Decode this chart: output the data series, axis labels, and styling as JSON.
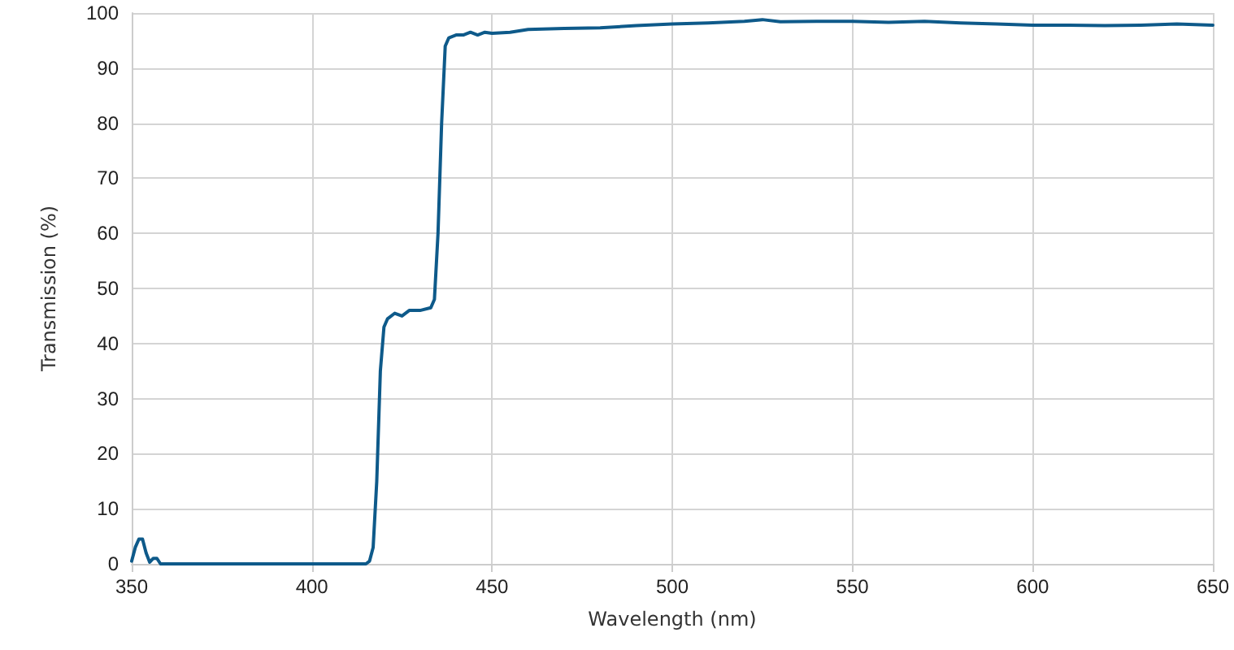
{
  "chart_data": {
    "type": "line",
    "xlabel": "Wavelength (nm)",
    "ylabel": "Transmission (%)",
    "x": [
      350,
      351,
      352,
      353,
      354,
      355,
      356,
      357,
      358,
      360,
      380,
      400,
      415,
      416,
      417,
      418,
      419,
      420,
      421,
      423,
      425,
      427,
      430,
      433,
      434,
      435,
      436,
      437,
      438,
      440,
      442,
      444,
      446,
      448,
      450,
      455,
      460,
      470,
      480,
      490,
      500,
      510,
      520,
      525,
      530,
      540,
      550,
      560,
      570,
      580,
      590,
      600,
      610,
      620,
      630,
      640,
      650
    ],
    "series": [
      {
        "color": "#0e5a8a",
        "values": [
          0.5,
          3,
          4.5,
          4.5,
          2,
          0.3,
          1,
          1,
          0,
          0,
          0,
          0,
          0,
          0.5,
          3,
          15,
          35,
          43,
          44.5,
          45.5,
          45,
          46,
          46,
          46.5,
          48,
          60,
          80,
          94,
          95.5,
          96,
          96,
          96.5,
          96,
          96.5,
          96.3,
          96.5,
          97,
          97.2,
          97.3,
          97.7,
          98,
          98.2,
          98.5,
          98.8,
          98.4,
          98.5,
          98.5,
          98.3,
          98.5,
          98.2,
          98,
          97.8,
          97.8,
          97.7,
          97.8,
          98,
          97.8
        ]
      }
    ],
    "xlim": [
      350,
      650
    ],
    "xticks": [
      350,
      400,
      450,
      500,
      550,
      600,
      650
    ],
    "ylim": [
      0,
      100
    ],
    "yticks": [
      0,
      10,
      20,
      30,
      40,
      50,
      60,
      70,
      80,
      90,
      100
    ],
    "grid": true,
    "marker": "none",
    "line_style": "solid"
  }
}
